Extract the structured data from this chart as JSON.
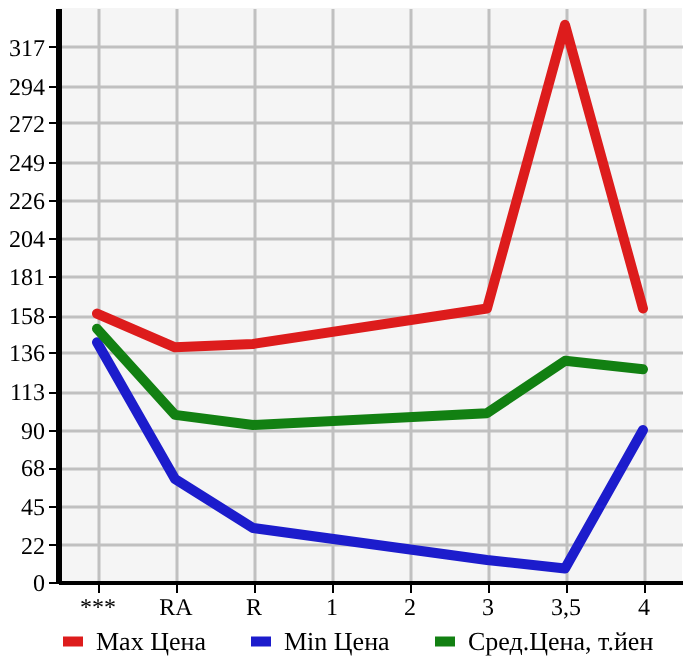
{
  "chart_data": {
    "type": "line",
    "categories": [
      "***",
      "RA",
      "R",
      "1",
      "2",
      "3",
      "3,5",
      "4"
    ],
    "series": [
      {
        "name": "Max Цена",
        "color": "#dd1c1c",
        "values": [
          159,
          139,
          141,
          null,
          null,
          162,
          330,
          162
        ]
      },
      {
        "name": "Min Цена",
        "color": "#1c1ccc",
        "values": [
          142,
          61,
          32,
          null,
          null,
          13,
          8,
          90
        ]
      },
      {
        "name": "Сред.Цена, т.йен",
        "color": "#128012",
        "values": [
          150,
          99,
          93,
          null,
          null,
          100,
          131,
          126
        ]
      }
    ],
    "ylim": [
      0,
      340
    ],
    "yticks": [
      0,
      22,
      45,
      68,
      90,
      113,
      136,
      158,
      181,
      204,
      226,
      249,
      272,
      294,
      317
    ],
    "grid": true,
    "legend": "bottom",
    "marker": "none",
    "line_style": "solid"
  }
}
